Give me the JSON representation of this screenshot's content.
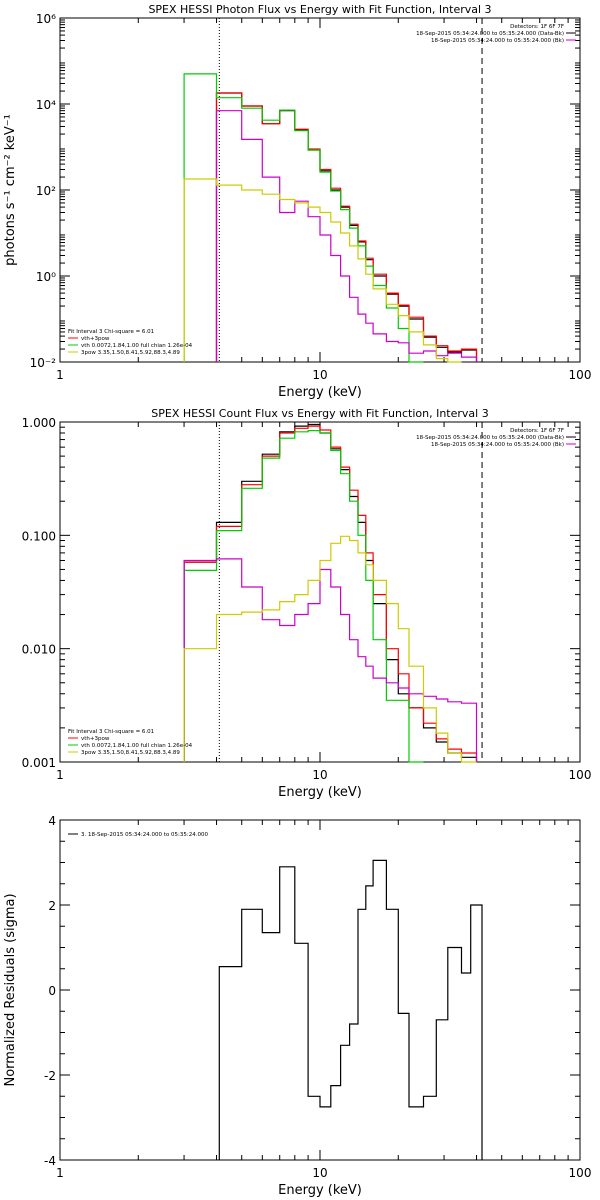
{
  "chart_data": [
    {
      "type": "line",
      "title": "SPEX HESSI Photon Flux vs Energy with Fit Function, Interval 3",
      "xlabel": "Energy (keV)",
      "ylabel": "photons s⁻¹ cm⁻² keV⁻¹",
      "xscale": "log",
      "yscale": "log",
      "xlim": [
        1,
        100
      ],
      "ylim": [
        0.01,
        1000000
      ],
      "xticks": [
        {
          "v": 1,
          "label": "1"
        },
        {
          "v": 10,
          "label": "10"
        },
        {
          "v": 100,
          "label": "100"
        }
      ],
      "yticks": [
        {
          "v": 0.01,
          "label": "10⁻²"
        },
        {
          "v": 1,
          "label": "10⁰"
        },
        {
          "v": 100,
          "label": "10²"
        },
        {
          "v": 10000,
          "label": "10⁴"
        },
        {
          "v": 1000000,
          "label": "10⁶"
        }
      ],
      "header": [
        "Detectors: 1F 6F 7F",
        "18-Sep-2015 05:34:24.000 to 05:35:24.000 (Data-Bk)",
        "18-Sep-2015 05:34:24.000 to 05:35:24.000 (Bk)"
      ],
      "header_colors": [
        "",
        "#000000",
        "#cc00cc"
      ],
      "legend": [
        "Fit Interval 3   Chi-square = 6.01",
        "vth+3pow",
        "vth 0.0072,1.84,1.00  full chian 1.26e-04",
        "3pow 3.35,1.50,8.41,5.92,88.3,4.89"
      ],
      "legend_colors": [
        "",
        "#ff0000",
        "#00cc00",
        "#cccc00"
      ],
      "vlines": [
        {
          "x": 4.1,
          "style": "dotted"
        },
        {
          "x": 42,
          "style": "dashed"
        }
      ],
      "edges": [
        3.0,
        4.0,
        5.0,
        6.0,
        7.0,
        8.0,
        9.0,
        10.0,
        11.0,
        12.0,
        13.0,
        14.0,
        15.0,
        16.0,
        18.0,
        20.0,
        22.0,
        25.0,
        28.0,
        31.0,
        35.0,
        40.0
      ],
      "series": [
        {
          "color": "#000000",
          "values": [
            null,
            18000,
            9000,
            3500,
            7000,
            2500,
            850,
            280,
            100,
            40,
            15,
            6.2,
            2.4,
            1.0,
            0.38,
            0.2,
            0.1,
            0.038,
            0.022,
            0.017,
            0.019
          ]
        },
        {
          "color": "#ff0000",
          "values": [
            null,
            18000,
            9000,
            3500,
            7200,
            2600,
            900,
            300,
            110,
            42,
            16,
            6.5,
            2.6,
            1.1,
            0.4,
            0.21,
            0.11,
            0.04,
            0.024,
            0.018,
            0.02
          ]
        },
        {
          "color": "#00cc00",
          "values": [
            50000,
            14000,
            8000,
            4200,
            7200,
            2400,
            850,
            260,
            95,
            35,
            13,
            5.0,
            1.7,
            0.6,
            0.18,
            0.06,
            0.01,
            null,
            null,
            null,
            null
          ]
        },
        {
          "color": "#cc00cc",
          "values": [
            null,
            7000,
            1500,
            200,
            30,
            55,
            24,
            9,
            3.0,
            1.0,
            0.32,
            0.13,
            0.08,
            0.045,
            0.03,
            0.028,
            0.016,
            0.018,
            0.014,
            0.016,
            0.013
          ]
        },
        {
          "color": "#cccc00",
          "values": [
            180,
            130,
            100,
            80,
            60,
            50,
            40,
            30,
            18,
            10,
            5,
            2.5,
            1.1,
            0.5,
            0.22,
            0.12,
            0.05,
            0.025,
            0.012,
            0.01,
            null
          ]
        }
      ]
    },
    {
      "type": "line",
      "title": "SPEX HESSI Count Flux vs Energy with Fit Function, Interval 3",
      "xlabel": "Energy (keV)",
      "ylabel": "",
      "xscale": "log",
      "yscale": "log",
      "xlim": [
        1,
        100
      ],
      "ylim": [
        0.001,
        1.0
      ],
      "xticks": [
        {
          "v": 1,
          "label": "1"
        },
        {
          "v": 10,
          "label": "10"
        },
        {
          "v": 100,
          "label": "100"
        }
      ],
      "yticks": [
        {
          "v": 0.001,
          "label": "0.001"
        },
        {
          "v": 0.01,
          "label": "0.010"
        },
        {
          "v": 0.1,
          "label": "0.100"
        },
        {
          "v": 1.0,
          "label": "1.000"
        }
      ],
      "header": [
        "Detectors: 1F 6F 7F",
        "18-Sep-2015 05:34:24.000 to 05:35:24.000 (Data-Bk)",
        "18-Sep-2015 05:34:24.000 to 05:35:24.000 (Bk)"
      ],
      "header_colors": [
        "",
        "#000000",
        "#cc00cc"
      ],
      "legend": [
        "Fit Interval 3   Chi-square = 6.01",
        "vth+3pow",
        "vth 0.0072,1.84,1.00  full chian 1.26e-04",
        "3pow 3.35,1.50,8.41,5.92,88.3,4.89"
      ],
      "legend_colors": [
        "",
        "#ff0000",
        "#00cc00",
        "#cccc00"
      ],
      "vlines": [
        {
          "x": 4.1,
          "style": "dotted"
        },
        {
          "x": 42,
          "style": "dashed"
        }
      ],
      "edges": [
        3.0,
        4.0,
        5.0,
        6.0,
        7.0,
        8.0,
        9.0,
        10.0,
        11.0,
        12.0,
        13.0,
        14.0,
        15.0,
        16.0,
        18.0,
        20.0,
        22.0,
        25.0,
        28.0,
        31.0,
        35.0,
        40.0
      ],
      "series": [
        {
          "color": "#000000",
          "values": [
            0.058,
            0.13,
            0.3,
            0.52,
            0.82,
            0.92,
            0.95,
            0.8,
            0.58,
            0.38,
            0.22,
            0.13,
            0.06,
            0.025,
            0.008,
            0.004,
            0.003,
            0.002,
            0.0015,
            0.0012,
            0.0011
          ]
        },
        {
          "color": "#ff0000",
          "values": [
            0.058,
            0.12,
            0.28,
            0.5,
            0.8,
            0.88,
            0.92,
            0.85,
            0.6,
            0.4,
            0.25,
            0.15,
            0.07,
            0.03,
            0.01,
            0.006,
            0.003,
            0.0022,
            0.0016,
            0.0013,
            0.0012
          ]
        },
        {
          "color": "#00cc00",
          "values": [
            0.049,
            0.11,
            0.26,
            0.48,
            0.72,
            0.82,
            0.84,
            0.8,
            0.56,
            0.35,
            0.2,
            0.1,
            0.04,
            0.012,
            0.0035,
            0.0035,
            0.001,
            null,
            null,
            null,
            null
          ]
        },
        {
          "color": "#cc00cc",
          "values": [
            0.06,
            0.062,
            0.035,
            0.018,
            0.016,
            0.02,
            0.025,
            0.05,
            0.035,
            0.02,
            0.012,
            0.0085,
            0.007,
            0.0055,
            0.005,
            0.0045,
            0.004,
            0.0038,
            0.0036,
            0.0034,
            0.0033
          ]
        },
        {
          "color": "#cccc00",
          "values": [
            0.01,
            0.02,
            0.021,
            0.022,
            0.026,
            0.03,
            0.04,
            0.06,
            0.085,
            0.098,
            0.09,
            0.07,
            0.055,
            0.04,
            0.025,
            0.015,
            0.007,
            0.003,
            0.0018,
            0.0012,
            0.001
          ]
        }
      ]
    },
    {
      "type": "line",
      "title": "",
      "xlabel": "Energy (keV)",
      "ylabel": "Normalized Residuals (sigma)",
      "xscale": "log",
      "yscale": "linear",
      "xlim": [
        1,
        100
      ],
      "ylim": [
        -4,
        4
      ],
      "xticks": [
        {
          "v": 1,
          "label": "1"
        },
        {
          "v": 10,
          "label": "10"
        },
        {
          "v": 100,
          "label": "100"
        }
      ],
      "yticks": [
        {
          "v": -4,
          "label": "-4"
        },
        {
          "v": -2,
          "label": "-2"
        },
        {
          "v": 0,
          "label": "0"
        },
        {
          "v": 2,
          "label": "2"
        },
        {
          "v": 4,
          "label": "4"
        }
      ],
      "header": [],
      "header_colors": [],
      "legend": [
        "3. 18-Sep-2015 05:34:24.000 to 05:35:24.000"
      ],
      "legend_colors": [
        "#000000"
      ],
      "vlines": [],
      "edges": [
        4.1,
        5.0,
        6.0,
        7.0,
        8.0,
        9.0,
        10.0,
        11.0,
        12.0,
        13.0,
        14.0,
        15.0,
        16.0,
        18.0,
        20.0,
        22.0,
        25.0,
        28.0,
        31.0,
        35.0,
        38.0,
        42.0
      ],
      "series": [
        {
          "color": "#000000",
          "values": [
            0.55,
            1.9,
            1.35,
            2.9,
            1.1,
            -2.5,
            -2.75,
            -2.25,
            -1.3,
            -0.8,
            1.9,
            2.45,
            3.05,
            1.9,
            -0.55,
            -2.75,
            -2.5,
            -0.7,
            1.0,
            0.4,
            2.0
          ]
        }
      ]
    }
  ]
}
